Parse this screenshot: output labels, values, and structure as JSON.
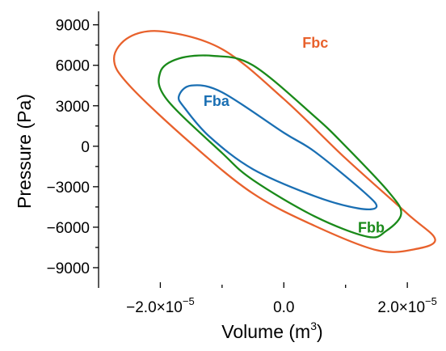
{
  "chart_data": {
    "type": "line",
    "title": "",
    "xlabel": "Volume (m",
    "xlabel_superscript": "3",
    "xlabel_suffix": ")",
    "ylabel": "Pressure (Pa)",
    "xlim": [
      -3e-05,
      2.6e-05
    ],
    "ylim": [
      -10500,
      10000
    ],
    "x_ticks": [
      {
        "value": -2e-05,
        "label": "−2.0×10",
        "exp": "−5"
      },
      {
        "value": 0.0,
        "label": "0.0",
        "exp": ""
      },
      {
        "value": 2e-05,
        "label": "2.0×10",
        "exp": "−5"
      }
    ],
    "y_ticks": [
      {
        "value": 9000,
        "label": "9000"
      },
      {
        "value": 6000,
        "label": "6000"
      },
      {
        "value": 3000,
        "label": "3000"
      },
      {
        "value": 0,
        "label": "0"
      },
      {
        "value": -3000,
        "label": "−3000"
      },
      {
        "value": -6000,
        "label": "−6000"
      },
      {
        "value": -9000,
        "label": "−9000"
      }
    ],
    "grid": false,
    "legend": "inline",
    "series": [
      {
        "name": "Fbc",
        "color": "#e8612c",
        "points": [
          [
            -1.95e-05,
            8500
          ],
          [
            -1e-05,
            7200
          ],
          [
            0.0,
            3500
          ],
          [
            1e-05,
            -900
          ],
          [
            2e-05,
            -5000
          ],
          [
            2.45e-05,
            -6900
          ],
          [
            2.1e-05,
            -7650
          ],
          [
            1.5e-05,
            -7700
          ],
          [
            5e-06,
            -5900
          ],
          [
            -5e-06,
            -3500
          ],
          [
            -1.5e-05,
            200
          ],
          [
            -2.5e-05,
            4500
          ],
          [
            -2.75e-05,
            6500
          ],
          [
            -2.5e-05,
            8100
          ],
          [
            -1.95e-05,
            8500
          ]
        ]
      },
      {
        "name": "Fbb",
        "color": "#1a8a1a",
        "points": [
          [
            -1.15e-05,
            6700
          ],
          [
            -5e-06,
            6000
          ],
          [
            5e-06,
            2200
          ],
          [
            1e-05,
            0
          ],
          [
            1.7e-05,
            -3400
          ],
          [
            1.9e-05,
            -5000
          ],
          [
            1.65e-05,
            -6300
          ],
          [
            1.35e-05,
            -6700
          ],
          [
            5e-06,
            -5200
          ],
          [
            -5e-06,
            -2500
          ],
          [
            -1e-05,
            -500
          ],
          [
            -1.9e-05,
            3500
          ],
          [
            -2e-05,
            5500
          ],
          [
            -1.7e-05,
            6500
          ],
          [
            -1.15e-05,
            6700
          ]
        ]
      },
      {
        "name": "Fba",
        "color": "#1a6fb3",
        "points": [
          [
            -1.5e-05,
            4500
          ],
          [
            -1e-05,
            4000
          ],
          [
            0.0,
            1000
          ],
          [
            5e-06,
            -400
          ],
          [
            1.3e-05,
            -3400
          ],
          [
            1.5e-05,
            -4500
          ],
          [
            1.2e-05,
            -4600
          ],
          [
            5e-06,
            -3700
          ],
          [
            -5e-06,
            -1700
          ],
          [
            -1.2e-05,
            700
          ],
          [
            -1.6e-05,
            2800
          ],
          [
            -1.7e-05,
            3700
          ],
          [
            -1.5e-05,
            4500
          ]
        ]
      }
    ],
    "annotations": [
      {
        "text": "Fbc",
        "x": 3e-06,
        "y": 7300,
        "color": "#e8612c"
      },
      {
        "text": "Fba",
        "x": -1.3e-05,
        "y": 3000,
        "color": "#1a6fb3"
      },
      {
        "text": "Fbb",
        "x": 1.2e-05,
        "y": -6400,
        "color": "#1a8a1a"
      }
    ]
  }
}
